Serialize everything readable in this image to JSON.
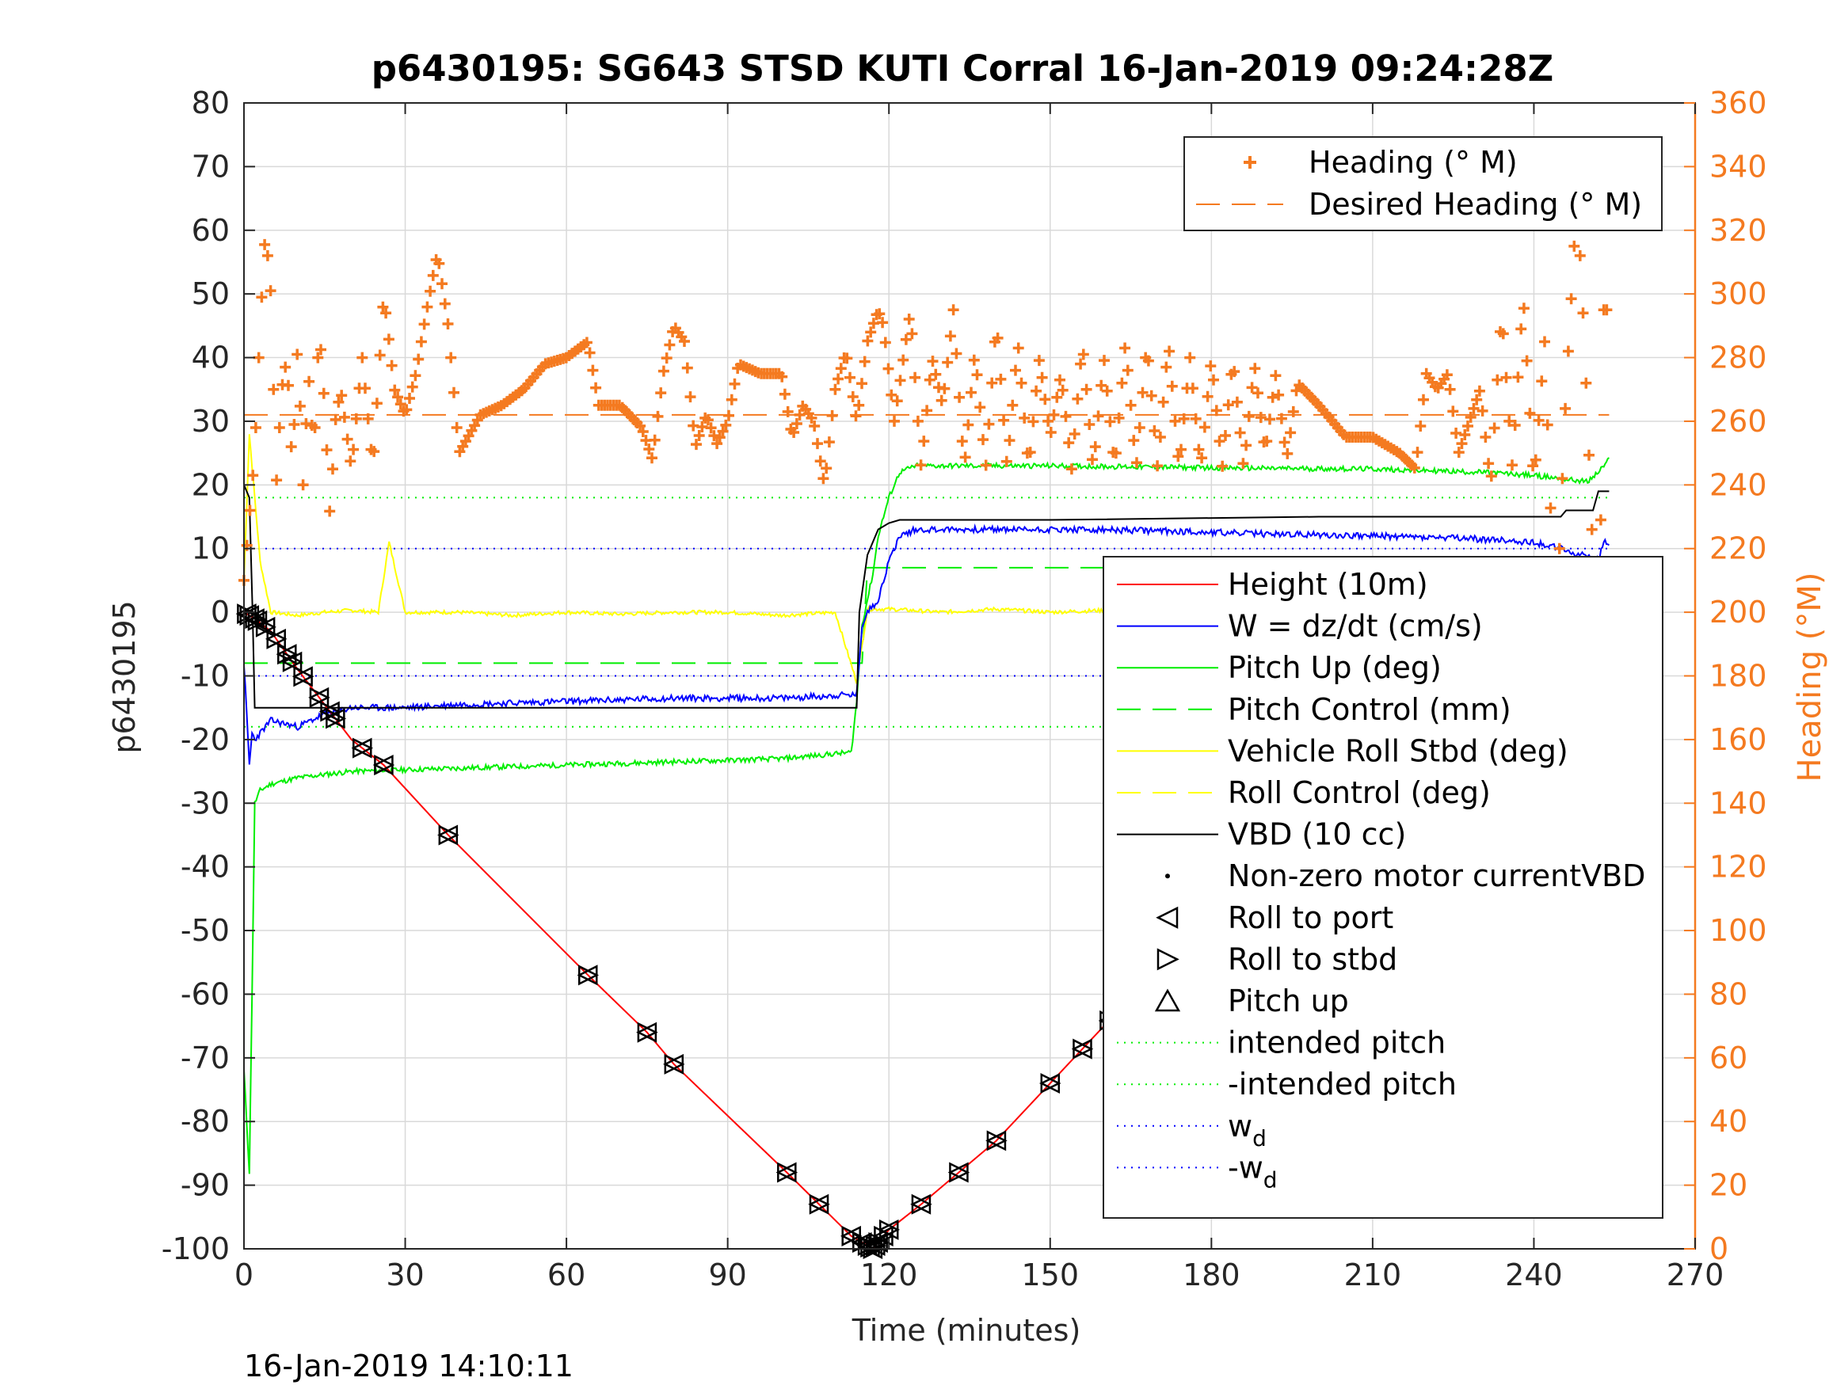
{
  "chart_data": {
    "type": "line",
    "title": "p6430195: SG643 STSD KUTI Corral 16-Jan-2019 09:24:28Z",
    "xlabel": "Time (minutes)",
    "ylabel": "p6430195",
    "y2label": "Heading (°M)",
    "xlim": [
      0,
      270
    ],
    "ylim": [
      -100,
      80
    ],
    "y2lim": [
      0,
      360
    ],
    "xticks": [
      0,
      30,
      60,
      90,
      120,
      150,
      180,
      210,
      240,
      270
    ],
    "yticks": [
      -100,
      -90,
      -80,
      -70,
      -60,
      -50,
      -40,
      -30,
      -20,
      -10,
      0,
      10,
      20,
      30,
      40,
      50,
      60,
      70,
      80
    ],
    "y2ticks": [
      0,
      20,
      40,
      60,
      80,
      100,
      120,
      140,
      160,
      180,
      200,
      220,
      240,
      260,
      280,
      300,
      320,
      340,
      360
    ],
    "grid": true,
    "footer": "16-Jan-2019 14:10:11",
    "colors": {
      "height": "#ff0000",
      "w": "#0000ff",
      "pitch": "#00ee00",
      "roll": "#ffff00",
      "vbd": "#000000",
      "heading": "#f47a20",
      "grid": "#d9d9d9",
      "marker": "#000000"
    },
    "legend_heading": {
      "placement": "top-right",
      "entries": [
        {
          "label": "Heading (° M)",
          "style": "plus",
          "color": "#f47a20"
        },
        {
          "label": "Desired Heading (° M)",
          "style": "dash",
          "color": "#f47a20"
        }
      ]
    },
    "legend_main": {
      "placement": "right",
      "entries": [
        {
          "label": "Height (10m)",
          "style": "solid",
          "color": "#ff0000"
        },
        {
          "label": "W = dz/dt (cm/s)",
          "style": "solid",
          "color": "#0000ff"
        },
        {
          "label": "Pitch Up (deg)",
          "style": "solid",
          "color": "#00ee00"
        },
        {
          "label": "Pitch Control (mm)",
          "style": "dash",
          "color": "#00ee00"
        },
        {
          "label": "Vehicle Roll Stbd (deg)",
          "style": "solid",
          "color": "#ffff00"
        },
        {
          "label": "Roll Control (deg)",
          "style": "dash",
          "color": "#ffff00"
        },
        {
          "label": "VBD (10 cc)",
          "style": "solid",
          "color": "#000000"
        },
        {
          "label": "Non-zero motor currentVBD",
          "style": "dot",
          "color": "#000000"
        },
        {
          "label": "Roll to port",
          "style": "tri-left",
          "color": "#000000"
        },
        {
          "label": "Roll to stbd",
          "style": "tri-right",
          "color": "#000000"
        },
        {
          "label": "Pitch up",
          "style": "tri-up",
          "color": "#000000"
        },
        {
          "label": "intended pitch",
          "style": "dotted",
          "color": "#00ee00"
        },
        {
          "label": "-intended pitch",
          "style": "dotted",
          "color": "#00ee00"
        },
        {
          "label": "w",
          "sub": "d",
          "style": "dotted",
          "color": "#0000ff"
        },
        {
          "label": "-w",
          "sub": "d",
          "style": "dotted",
          "color": "#0000ff"
        }
      ]
    },
    "series": {
      "height": {
        "name": "Height (10m)",
        "x": [
          0,
          2,
          5,
          10,
          20,
          26,
          38,
          64,
          75,
          80,
          101,
          107,
          113,
          117,
          120,
          126,
          133,
          140,
          150,
          160,
          172,
          185,
          196,
          210,
          220,
          230,
          240,
          248,
          254
        ],
        "y": [
          0,
          -1,
          -3,
          -9,
          -20,
          -24,
          -35,
          -57,
          -66,
          -71,
          -88,
          -93,
          -98,
          -100,
          -97,
          -93,
          -88,
          -83,
          -74,
          -65,
          -55,
          -48,
          -40,
          -31,
          -22,
          -15,
          -7,
          -2,
          0
        ]
      },
      "w": {
        "name": "W = dz/dt (cm/s)",
        "x": [
          0,
          1,
          1.5,
          2,
          3,
          5,
          10,
          15,
          20,
          30,
          40,
          60,
          80,
          100,
          112,
          114,
          115,
          116,
          118,
          120,
          122,
          125,
          130,
          150,
          170,
          190,
          210,
          230,
          240,
          245,
          248,
          250,
          252,
          253,
          254
        ],
        "y": [
          -8,
          -24,
          -19,
          -20,
          -19,
          -17,
          -18,
          -16,
          -15,
          -15,
          -14.5,
          -14,
          -13.5,
          -13.5,
          -13,
          -13,
          -2,
          0,
          2,
          8,
          12,
          13,
          13,
          13,
          12.8,
          12.3,
          12,
          11.5,
          11,
          10,
          9,
          9,
          8,
          11,
          11
        ]
      },
      "pitch": {
        "name": "Pitch Up (deg)",
        "x": [
          0,
          1,
          1.5,
          2,
          3,
          5,
          10,
          20,
          40,
          60,
          80,
          100,
          113,
          114,
          115,
          117,
          118,
          120,
          122,
          125,
          130,
          150,
          170,
          190,
          210,
          230,
          240,
          245,
          250,
          252,
          253,
          254
        ],
        "y": [
          -72,
          -88,
          -60,
          -30,
          -28,
          -27,
          -26,
          -25,
          -24.5,
          -24,
          -23.5,
          -23,
          -22,
          -14,
          -2,
          6,
          12,
          18,
          22,
          23,
          23,
          23,
          22.8,
          22.6,
          22.5,
          22,
          21.5,
          21,
          20.5,
          22,
          23,
          24
        ]
      },
      "pitch_control": {
        "name": "Pitch Control (mm)",
        "x": [
          0,
          115,
          116,
          254
        ],
        "y": [
          -8,
          -8,
          7,
          7
        ]
      },
      "roll": {
        "name": "Vehicle Roll Stbd (deg)",
        "x": [
          0,
          1,
          3,
          5,
          10,
          15,
          20,
          25,
          27,
          30,
          40,
          50,
          60,
          70,
          80,
          90,
          100,
          110,
          114,
          116,
          120,
          130,
          140,
          150,
          160,
          170,
          180,
          190,
          200,
          210,
          220,
          230,
          240,
          250,
          254
        ],
        "y": [
          5,
          28,
          8,
          0,
          -0.5,
          0,
          0.3,
          0,
          11,
          0,
          0,
          -0.5,
          0,
          -0.3,
          0,
          0,
          -0.5,
          0,
          -11,
          0.5,
          0.5,
          0,
          0.5,
          0,
          0.3,
          0,
          0,
          -0.2,
          0,
          0.3,
          0,
          0,
          -0.5,
          0,
          0.5
        ]
      },
      "vbd": {
        "name": "VBD (10 cc)",
        "x": [
          0,
          1,
          1.6,
          2,
          10,
          50,
          100,
          114,
          114.5,
          116,
          118,
          120,
          122,
          150,
          200,
          245,
          246,
          251,
          252,
          254
        ],
        "y": [
          20,
          18,
          0,
          -15,
          -15,
          -15,
          -15,
          -15,
          0,
          9,
          13,
          14,
          14.5,
          14.5,
          15,
          15,
          16,
          16,
          19,
          19
        ]
      },
      "heading": {
        "name": "Heading (° M)",
        "x": [
          0,
          2,
          3,
          4,
          5,
          6,
          7,
          8,
          9,
          10,
          11,
          12,
          13,
          14,
          15,
          16,
          17,
          18,
          20,
          22,
          24,
          26,
          28,
          30,
          32,
          34,
          36,
          38,
          40,
          44,
          48,
          52,
          56,
          60,
          64,
          66,
          70,
          74,
          76,
          78,
          80,
          82,
          84,
          86,
          88,
          90,
          92,
          96,
          100,
          102,
          104,
          106,
          108,
          110,
          112,
          114,
          116,
          118,
          119,
          121,
          124,
          126,
          128,
          130,
          132,
          134,
          136,
          138,
          140,
          142,
          144,
          146,
          148,
          150,
          152,
          154,
          156,
          158,
          160,
          162,
          164,
          166,
          168,
          170,
          172,
          174,
          176,
          178,
          180,
          182,
          184,
          186,
          188,
          190,
          192,
          194,
          196,
          200,
          205,
          210,
          215,
          218,
          220,
          222,
          224,
          226,
          230,
          232,
          234,
          236,
          238,
          240,
          242,
          244,
          246,
          248,
          249,
          250,
          252,
          253,
          254
        ],
        "y": [
          210,
          250,
          290,
          320,
          300,
          240,
          270,
          280,
          245,
          285,
          240,
          275,
          250,
          290,
          265,
          230,
          260,
          270,
          245,
          280,
          245,
          300,
          270,
          262,
          275,
          295,
          313,
          290,
          250,
          262,
          265,
          270,
          278,
          280,
          285,
          265,
          265,
          258,
          248,
          275,
          290,
          285,
          252,
          262,
          253,
          260,
          278,
          275,
          275,
          255,
          265,
          260,
          240,
          270,
          282,
          260,
          285,
          295,
          290,
          260,
          295,
          245,
          280,
          265,
          295,
          245,
          282,
          245,
          292,
          245,
          285,
          245,
          280,
          255,
          275,
          245,
          285,
          245,
          280,
          245,
          285,
          245,
          285,
          245,
          285,
          245,
          280,
          245,
          280,
          245,
          280,
          245,
          278,
          250,
          275,
          248,
          272,
          265,
          255,
          255,
          250,
          245,
          275,
          270,
          275,
          250,
          270,
          240,
          295,
          245,
          300,
          240,
          285,
          190,
          270,
          330,
          300,
          260,
          175,
          295,
          295
        ]
      },
      "desired_heading": {
        "name": "Desired Heading (° M)",
        "x": [
          0,
          254
        ],
        "y": [
          262,
          262
        ]
      }
    },
    "reference_lines": {
      "intended_pitch": 18,
      "neg_intended_pitch": -18,
      "w_d": 10,
      "neg_w_d": -10
    },
    "markers": {
      "name": "Roll to port / Roll to stbd / Pitch up",
      "t": [
        0.5,
        1,
        2,
        2.5,
        4,
        6,
        8,
        9,
        11,
        14,
        16,
        17,
        22,
        26,
        38,
        64,
        75,
        80,
        101,
        107,
        113,
        115,
        116,
        116.5,
        117,
        117.5,
        118,
        119,
        120,
        126,
        133,
        140,
        150,
        156,
        161,
        168,
        172,
        180,
        185,
        191,
        196,
        216,
        220,
        223,
        234,
        237,
        239,
        242,
        244,
        246,
        248,
        250,
        253,
        254
      ]
    }
  }
}
